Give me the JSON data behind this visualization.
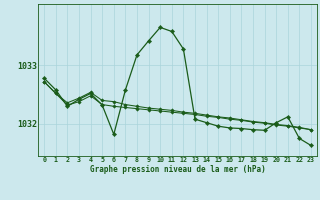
{
  "xlabel": "Graphe pression niveau de la mer (hPa)",
  "bg_color": "#cce8ed",
  "grid_color": "#aad4db",
  "line_color": "#1a5c1a",
  "x_labels": [
    "0",
    "1",
    "2",
    "3",
    "4",
    "5",
    "6",
    "7",
    "8",
    "9",
    "10",
    "11",
    "12",
    "13",
    "14",
    "15",
    "16",
    "17",
    "18",
    "19",
    "20",
    "21",
    "22",
    "23"
  ],
  "series1": [
    1032.78,
    1032.58,
    1032.3,
    1032.42,
    1032.52,
    1032.32,
    1031.82,
    1032.58,
    1033.18,
    1033.42,
    1033.65,
    1033.58,
    1033.28,
    1032.08,
    1032.02,
    1031.96,
    1031.93,
    1031.92,
    1031.9,
    1031.89,
    1032.02,
    1032.12,
    1031.75,
    1031.63
  ],
  "series2": [
    1032.72,
    1032.52,
    1032.32,
    1032.38,
    1032.48,
    1032.33,
    1032.3,
    1032.28,
    1032.26,
    1032.24,
    1032.22,
    1032.2,
    1032.18,
    1032.16,
    1032.13,
    1032.11,
    1032.08,
    1032.06,
    1032.03,
    1032.01,
    1031.98,
    1031.96,
    1031.93,
    1031.9
  ],
  "series3": [
    1032.72,
    1032.52,
    1032.36,
    1032.44,
    1032.54,
    1032.4,
    1032.38,
    1032.33,
    1032.3,
    1032.27,
    1032.25,
    1032.23,
    1032.2,
    1032.18,
    1032.15,
    1032.12,
    1032.1,
    1032.07,
    1032.04,
    1032.02,
    1031.99,
    1031.97,
    1031.94,
    1031.9
  ],
  "ylim_min": 1031.45,
  "ylim_max": 1034.05,
  "yticks": [
    1032.0,
    1033.0
  ],
  "xlim_min": -0.5,
  "xlim_max": 23.5,
  "xlabel_fontsize": 5.5,
  "ytick_fontsize": 6.0,
  "xtick_fontsize": 4.8,
  "linewidth1": 0.9,
  "linewidth2": 0.75,
  "markersize1": 2.2,
  "markersize2": 1.8
}
